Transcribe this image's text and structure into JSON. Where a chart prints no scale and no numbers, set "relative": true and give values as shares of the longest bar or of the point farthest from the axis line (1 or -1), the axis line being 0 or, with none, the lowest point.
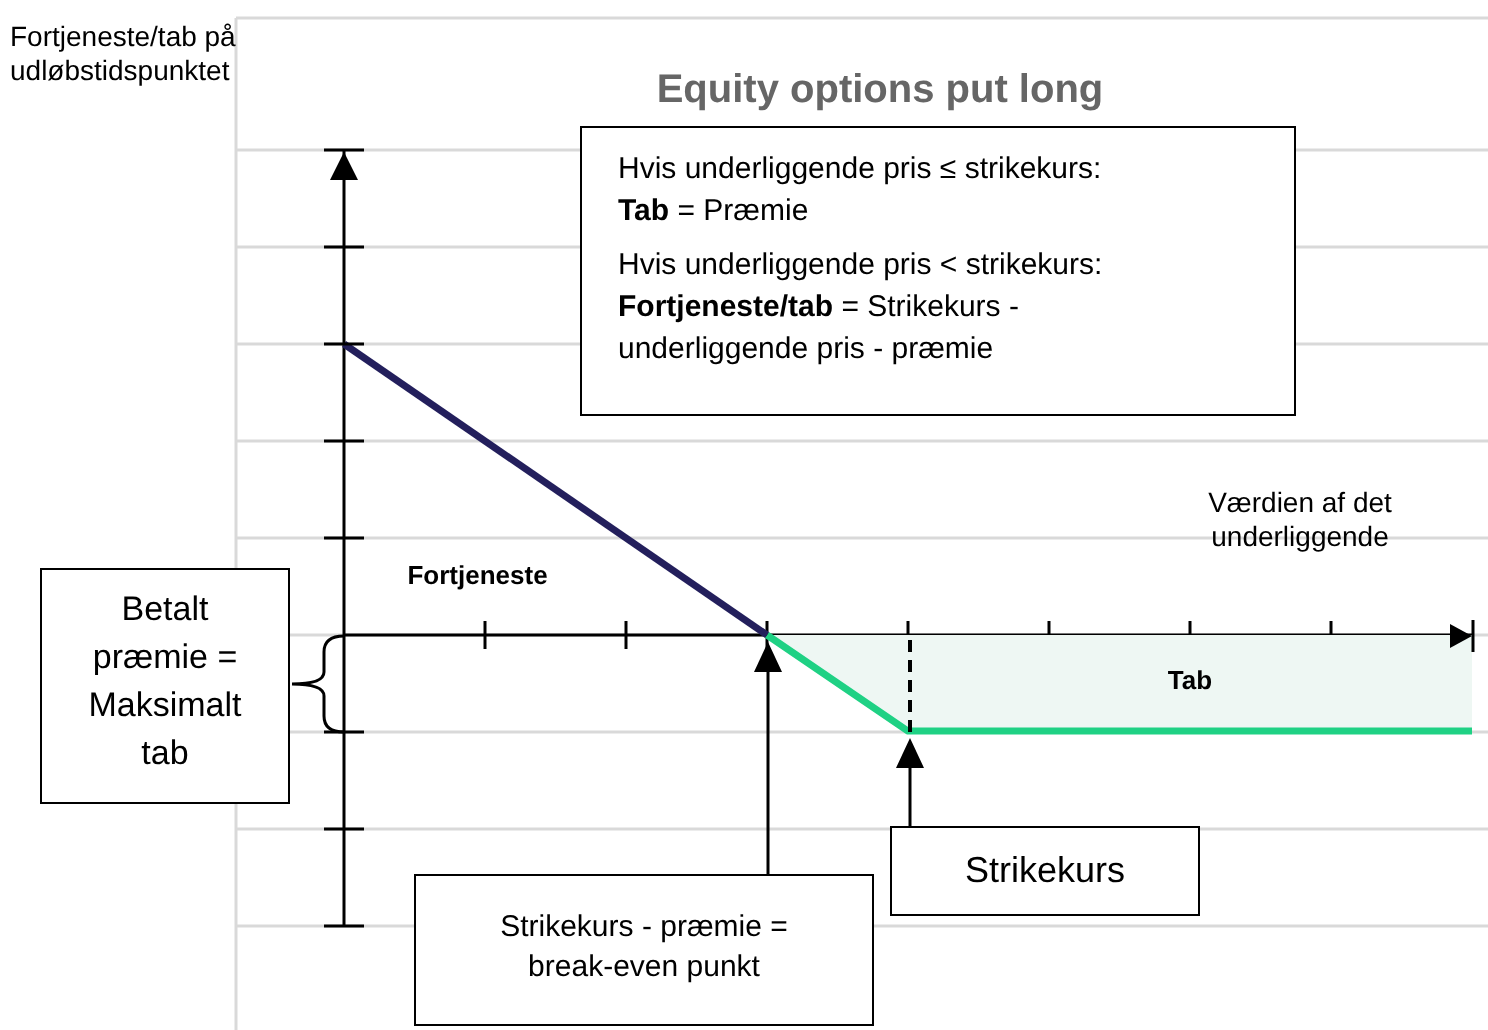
{
  "chart_data": {
    "type": "line",
    "title": "Equity options put long",
    "xlabel": "Værdien af det underliggende",
    "relative": true,
    "grid": "y",
    "legend": false,
    "marker": "none",
    "categories": [
      null,
      null,
      null,
      null,
      null,
      null,
      null,
      null,
      null
    ],
    "series": [
      {
        "name": "Fortjeneste",
        "color": "#231f5c",
        "values": [
          1,
          null,
          null,
          0,
          null,
          null,
          null,
          null,
          null
        ]
      },
      {
        "name": "Tab",
        "type": "area",
        "color": "#1fd184",
        "values": [
          null,
          null,
          null,
          0,
          -0.33,
          -0.33,
          -0.33,
          -0.33,
          -0.33
        ]
      }
    ],
    "annotations": [
      "Hvis underliggende pris ≤ strikekurs:\nTab = Præmie\n\nHvis underliggende pris < strikekurs:\nFortjeneste/tab = Strikekurs - underliggende pris - præmie",
      "Betalt præmie = Maksimalt tab",
      "Strikekurs - præmie = break-even punkt",
      "Strikekurs",
      "Fortjeneste/tab på udløbstidspunktet"
    ]
  }
}
